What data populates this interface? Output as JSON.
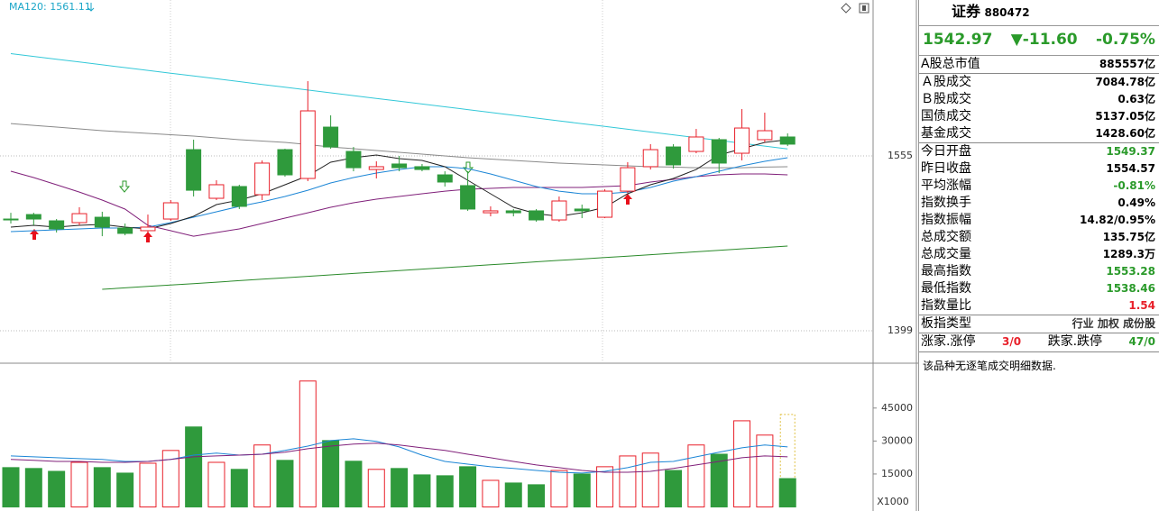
{
  "chart_data": [
    {
      "type": "candlestick",
      "label": "MA120: 1561.11",
      "up_color": "#e8202a",
      "down_color": "#2f9a3c",
      "ylim": [
        1372.5,
        1694.1
      ],
      "yticks": [
        1399,
        1555
      ],
      "grid": true,
      "open": [
        1498.7,
        1502.7,
        1497.1,
        1495.5,
        1500.3,
        1490.7,
        1488.3,
        1498.7,
        1560.6,
        1517.2,
        1527.7,
        1520.4,
        1560.6,
        1534.9,
        1580.7,
        1559.0,
        1542.9,
        1547.8,
        1545.4,
        1538.1,
        1528.5,
        1504.3,
        1506.0,
        1506.0,
        1497.9,
        1507.6,
        1500.3,
        1523.6,
        1545.4,
        1563.0,
        1559.0,
        1569.5,
        1557.4,
        1569.5,
        1571.9
      ],
      "high": [
        1504.3,
        1504.3,
        1498.7,
        1509.2,
        1505.2,
        1494.7,
        1502.7,
        1515.6,
        1569.5,
        1533.3,
        1529.3,
        1551.0,
        1561.4,
        1621.7,
        1591.2,
        1563.0,
        1550.2,
        1555.0,
        1547.8,
        1541.3,
        1541.3,
        1510.0,
        1507.6,
        1507.6,
        1518.8,
        1511.6,
        1525.3,
        1549.4,
        1565.5,
        1565.5,
        1579.1,
        1571.1,
        1596.8,
        1593.6,
        1575.1
      ],
      "low": [
        1494.7,
        1493.1,
        1486.7,
        1493.1,
        1483.4,
        1484.2,
        1486.7,
        1497.1,
        1518.8,
        1515.6,
        1507.6,
        1515.6,
        1536.5,
        1532.5,
        1561.4,
        1541.3,
        1534.9,
        1541.3,
        1541.3,
        1527.7,
        1506.0,
        1501.1,
        1501.1,
        1496.3,
        1496.3,
        1499.5,
        1499.5,
        1522.0,
        1542.9,
        1543.7,
        1557.4,
        1539.7,
        1551.0,
        1567.1,
        1563.8
      ],
      "close": [
        1498.0,
        1498.7,
        1489.9,
        1503.5,
        1491.5,
        1485.9,
        1491.5,
        1513.2,
        1524.4,
        1529.3,
        1510.0,
        1548.6,
        1538.1,
        1595.2,
        1563.0,
        1544.5,
        1545.4,
        1544.5,
        1542.9,
        1531.7,
        1507.6,
        1506.0,
        1504.3,
        1497.9,
        1514.8,
        1506.0,
        1523.6,
        1544.5,
        1560.6,
        1547.0,
        1571.9,
        1548.6,
        1579.9,
        1577.5,
        1565.5
      ],
      "lines": [
        {
          "color": "#33c8d8",
          "values": [
            1646.3,
            1643.8,
            1641.3,
            1638.8,
            1636.3,
            1633.8,
            1631.3,
            1628.8,
            1626.3,
            1623.8,
            1621.3,
            1618.8,
            1616.3,
            1613.8,
            1611.3,
            1608.8,
            1606.3,
            1603.8,
            1601.3,
            1598.8,
            1596.3,
            1593.8,
            1591.3,
            1588.8,
            1586.3,
            1583.8,
            1581.3,
            1578.8,
            1576.3,
            1573.8,
            1571.3,
            1568.8,
            1566.3,
            1563.8,
            1561.3
          ]
        },
        {
          "color": "#8a8a8a",
          "values": [
            1583.9,
            1582.3,
            1580.7,
            1579.1,
            1577.5,
            1576.3,
            1575.1,
            1573.9,
            1572.7,
            1571.1,
            1569.5,
            1568.3,
            1567.1,
            1565.1,
            1563.0,
            1561.4,
            1559.8,
            1558.2,
            1556.6,
            1555.0,
            1553.4,
            1552.2,
            1551.0,
            1549.8,
            1548.6,
            1547.8,
            1547.0,
            1546.2,
            1545.4,
            1545.0,
            1544.5,
            1544.5,
            1544.5,
            1545.0,
            1545.4
          ]
        },
        {
          "color": "#80207a",
          "values": [
            1541.3,
            1535.7,
            1529.3,
            1522.8,
            1515.6,
            1507.6,
            1493.1,
            1488.3,
            1483.4,
            1486.7,
            1489.9,
            1494.7,
            1499.5,
            1504.3,
            1509.2,
            1513.2,
            1516.4,
            1518.8,
            1521.2,
            1523.6,
            1525.3,
            1526.1,
            1526.9,
            1526.9,
            1526.9,
            1526.9,
            1527.7,
            1528.5,
            1531.7,
            1534.1,
            1536.5,
            1538.1,
            1538.9,
            1538.9,
            1538.1
          ]
        },
        {
          "color": "#1c86d6",
          "values": [
            1487.5,
            1488.3,
            1489.1,
            1489.9,
            1490.7,
            1490.7,
            1491.5,
            1495.5,
            1500.3,
            1505.2,
            1510.0,
            1514.0,
            1518.8,
            1524.4,
            1530.9,
            1535.7,
            1539.7,
            1542.9,
            1545.4,
            1545.4,
            1543.7,
            1538.9,
            1533.3,
            1527.7,
            1523.6,
            1521.2,
            1521.2,
            1522.8,
            1526.9,
            1532.5,
            1536.5,
            1541.3,
            1546.2,
            1550.2,
            1553.4
          ]
        },
        {
          "color": "#222222",
          "values": [
            1491.5,
            1493.1,
            1491.5,
            1493.1,
            1493.9,
            1491.5,
            1489.9,
            1494.7,
            1501.1,
            1511.6,
            1515.6,
            1521.2,
            1529.3,
            1537.3,
            1549.4,
            1553.4,
            1555.8,
            1552.6,
            1551.0,
            1545.4,
            1533.3,
            1521.2,
            1509.2,
            1503.5,
            1501.1,
            1504.3,
            1509.2,
            1521.2,
            1529.3,
            1534.9,
            1542.9,
            1555.8,
            1561.4,
            1567.1,
            1569.5
          ]
        },
        {
          "color": "#2a8a2a",
          "values": [
            null,
            null,
            null,
            null,
            1436.0,
            1437.3,
            1438.6,
            1439.9,
            1441.1,
            1442.4,
            1443.7,
            1445.0,
            1446.3,
            1447.6,
            1448.9,
            1450.2,
            1451.4,
            1452.7,
            1454.0,
            1455.3,
            1456.6,
            1457.9,
            1459.2,
            1460.5,
            1461.8,
            1463.0,
            1464.3,
            1465.6,
            1466.9,
            1468.2,
            1469.5,
            1470.8,
            1472.1,
            1473.3,
            1474.6
          ]
        }
      ]
    },
    {
      "type": "volume",
      "unit_label": "X1000",
      "ylim": [
        0,
        65000
      ],
      "yticks": [
        15000,
        30000,
        45000
      ],
      "values": [
        17900,
        17500,
        16200,
        20300,
        17900,
        15400,
        19900,
        25700,
        36400,
        20300,
        17100,
        28200,
        21200,
        57300,
        30200,
        20800,
        17100,
        17500,
        14600,
        14200,
        18300,
        12100,
        10900,
        10100,
        16600,
        15000,
        18300,
        23200,
        24500,
        16600,
        28200,
        24000,
        39200,
        32700,
        12900
      ],
      "estimated_last": 42100,
      "estimate_color": "#e0c040",
      "lines": [
        {
          "color": "#1c86d6",
          "values": [
            23200,
            22800,
            22400,
            22000,
            21600,
            20700,
            20700,
            21600,
            23600,
            24500,
            23600,
            24000,
            25700,
            27700,
            30200,
            31000,
            29800,
            27300,
            23600,
            20700,
            19500,
            18300,
            17500,
            16600,
            15800,
            15400,
            16200,
            17900,
            20300,
            20700,
            22800,
            24900,
            26900,
            28200,
            27300
          ]
        },
        {
          "color": "#80207a",
          "values": [
            21600,
            21200,
            20700,
            20700,
            20300,
            20300,
            20700,
            21600,
            22800,
            23200,
            23600,
            24000,
            24900,
            26500,
            27700,
            28600,
            29000,
            28200,
            26900,
            25700,
            24000,
            22400,
            20700,
            19100,
            17900,
            16600,
            15800,
            15800,
            16200,
            17500,
            19100,
            20700,
            22400,
            23200,
            22800
          ]
        }
      ]
    }
  ],
  "quote_panel": {
    "name": "证券",
    "code": "880472",
    "price": "1542.97",
    "change": "▼-11.60",
    "change_pct": "-0.75%",
    "quote_color": "#2a9a2a",
    "rows": [
      [
        {
          "label": "A股总市值",
          "value": "885557亿",
          "color": "#000000"
        }
      ],
      [
        {
          "label": "Ａ股成交",
          "value": "7084.78亿",
          "color": "#000000"
        },
        {
          "label": "Ｂ股成交",
          "value": "0.63亿",
          "color": "#000000"
        },
        {
          "label": "国债成交",
          "value": "5137.05亿",
          "color": "#000000"
        },
        {
          "label": "基金成交",
          "value": "1428.60亿",
          "color": "#000000"
        }
      ],
      [
        {
          "label": "今日开盘",
          "value": "1549.37",
          "color": "#2a9a2a"
        },
        {
          "label": "昨日收盘",
          "value": "1554.57",
          "color": "#000000"
        },
        {
          "label": "平均涨幅",
          "value": "-0.81%",
          "color": "#2a9a2a"
        },
        {
          "label": "指数换手",
          "value": "0.49%",
          "color": "#000000"
        },
        {
          "label": "指数振幅",
          "value": "14.82/0.95%",
          "color": "#000000"
        },
        {
          "label": "总成交额",
          "value": "135.75亿",
          "color": "#000000"
        },
        {
          "label": "总成交量",
          "value": "1289.3万",
          "color": "#000000"
        },
        {
          "label": "最高指数",
          "value": "1553.28",
          "color": "#2a9a2a"
        },
        {
          "label": "最低指数",
          "value": "1538.46",
          "color": "#2a9a2a"
        },
        {
          "label": "指数量比",
          "value": "1.54",
          "color": "#e8202a"
        }
      ],
      [
        {
          "label": "板指类型",
          "value": "行业 加权 成份股",
          "color": "#333333"
        }
      ]
    ],
    "breadth": {
      "up_label": "涨家.涨停",
      "up_value": "3/0",
      "up_color": "#e8202a",
      "down_label": "跌家.跌停",
      "down_value": "47/0",
      "down_color": "#2a9a2a"
    },
    "note": "该品种无逐笔成交明细数据."
  }
}
